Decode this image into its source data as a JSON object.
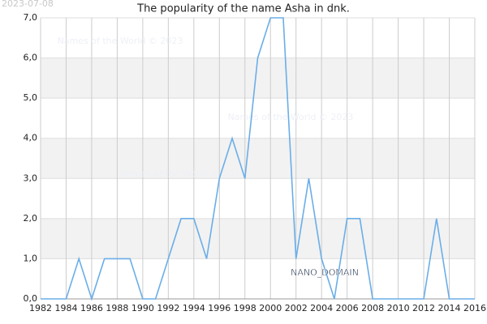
{
  "chart_data": {
    "type": "line",
    "date": "2023-07-08",
    "title": "The popularity of the name Asha in dnk.",
    "watermarks": [
      "Names of the World © 2023",
      "Names of the World © 2023",
      "Names of the World © 2023"
    ],
    "annotation": "NANO_DOMAIN",
    "x": [
      1982,
      1983,
      1984,
      1985,
      1986,
      1987,
      1988,
      1989,
      1990,
      1991,
      1992,
      1993,
      1994,
      1995,
      1996,
      1997,
      1998,
      1999,
      2000,
      2001,
      2002,
      2003,
      2004,
      2005,
      2006,
      2007,
      2008,
      2009,
      2010,
      2011,
      2012,
      2013,
      2014,
      2015,
      2016
    ],
    "series": [
      {
        "color": "#6aaee8",
        "values": [
          0,
          0,
          0,
          1,
          0,
          1,
          1,
          1,
          0,
          0,
          1,
          2,
          2,
          1,
          3,
          4,
          3,
          6,
          7,
          7,
          1,
          3,
          1,
          0,
          2,
          2,
          0,
          0,
          0,
          0,
          0,
          2,
          0,
          0,
          0
        ]
      }
    ],
    "xlim": [
      1982,
      2016
    ],
    "xticks": [
      1982,
      1984,
      1986,
      1988,
      1990,
      1992,
      1994,
      1996,
      1998,
      2000,
      2002,
      2004,
      2006,
      2008,
      2010,
      2012,
      2014,
      2016
    ],
    "ylim": [
      0,
      7
    ],
    "yticks": [
      {
        "value": 0,
        "label": "0,0"
      },
      {
        "value": 1,
        "label": "1,0"
      },
      {
        "value": 2,
        "label": "2,0"
      },
      {
        "value": 3,
        "label": "3,0"
      },
      {
        "value": 4,
        "label": "4,0"
      },
      {
        "value": 5,
        "label": "5,0"
      },
      {
        "value": 6,
        "label": "6,0"
      },
      {
        "value": 7,
        "label": "7,0"
      }
    ],
    "grid": true
  }
}
